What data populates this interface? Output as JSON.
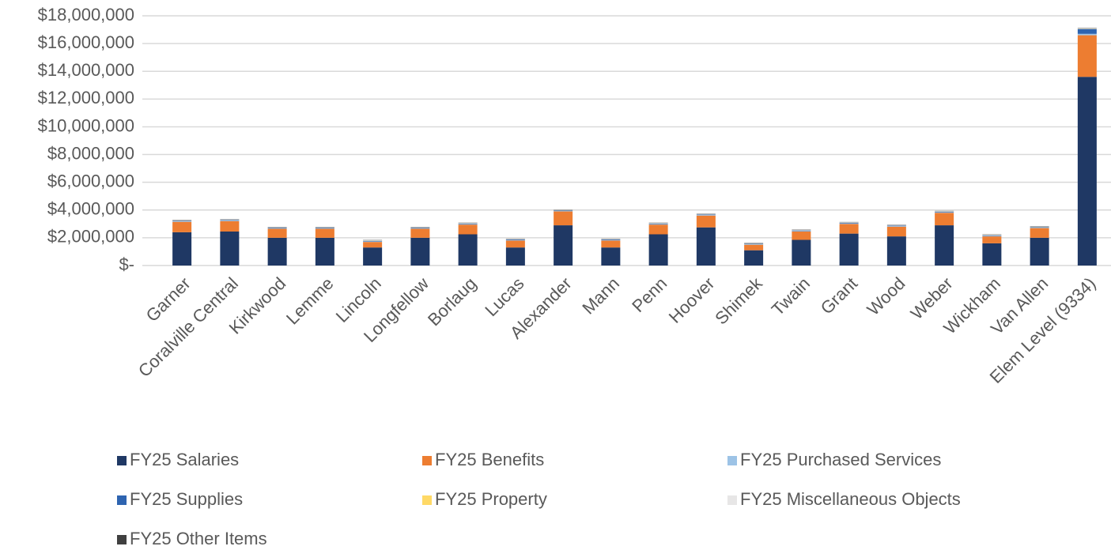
{
  "chart_data": {
    "type": "stacked_bar",
    "categories": [
      "Garner",
      "Coralville Central",
      "Kirkwood",
      "Lemme",
      "Lincoln",
      "Longfellow",
      "Borlaug",
      "Lucas",
      "Alexander",
      "Mann",
      "Penn",
      "Hoover",
      "Shimek",
      "Twain",
      "Grant",
      "Wood",
      "Weber",
      "Wickham",
      "Van Allen",
      "Elem Level (9334)"
    ],
    "series": [
      {
        "name": "FY25 Salaries",
        "color": "#1f3864",
        "values": [
          2400000,
          2450000,
          2000000,
          2000000,
          1300000,
          2000000,
          2250000,
          1300000,
          2900000,
          1300000,
          2250000,
          2750000,
          1100000,
          1850000,
          2300000,
          2100000,
          2900000,
          1600000,
          2000000,
          13600000
        ]
      },
      {
        "name": "FY25 Benefits",
        "color": "#ed7d31",
        "values": [
          750000,
          750000,
          650000,
          650000,
          400000,
          650000,
          700000,
          500000,
          1000000,
          500000,
          700000,
          850000,
          400000,
          600000,
          700000,
          700000,
          900000,
          500000,
          700000,
          3000000
        ]
      },
      {
        "name": "FY25 Purchased Services",
        "color": "#9dc3e6",
        "values": [
          40000,
          40000,
          40000,
          40000,
          40000,
          40000,
          40000,
          40000,
          40000,
          40000,
          40000,
          40000,
          40000,
          40000,
          40000,
          40000,
          40000,
          40000,
          40000,
          100000
        ]
      },
      {
        "name": "FY25 Supplies",
        "color": "#2e64b0",
        "values": [
          40000,
          40000,
          40000,
          40000,
          40000,
          40000,
          40000,
          40000,
          40000,
          40000,
          40000,
          40000,
          40000,
          40000,
          40000,
          40000,
          40000,
          40000,
          40000,
          350000
        ]
      },
      {
        "name": "FY25 Property",
        "color": "#ffd966",
        "values": [
          10000,
          10000,
          10000,
          10000,
          10000,
          10000,
          10000,
          10000,
          10000,
          10000,
          10000,
          10000,
          10000,
          10000,
          10000,
          10000,
          10000,
          10000,
          10000,
          20000
        ]
      },
      {
        "name": "FY25 Miscellaneous Objects",
        "color": "#e7e6e6",
        "values": [
          30000,
          30000,
          30000,
          30000,
          30000,
          30000,
          30000,
          30000,
          30000,
          30000,
          30000,
          30000,
          30000,
          30000,
          30000,
          30000,
          30000,
          30000,
          30000,
          50000
        ]
      },
      {
        "name": "FY25 Other Items",
        "color": "#404040",
        "values": [
          20000,
          20000,
          20000,
          20000,
          20000,
          20000,
          20000,
          20000,
          20000,
          20000,
          20000,
          20000,
          20000,
          20000,
          20000,
          20000,
          20000,
          20000,
          20000,
          20000
        ]
      }
    ],
    "ylim": [
      0,
      18000000
    ],
    "yticks": [
      {
        "value": 0,
        "label": "$-"
      },
      {
        "value": 2000000,
        "label": "$2,000,000"
      },
      {
        "value": 4000000,
        "label": "$4,000,000"
      },
      {
        "value": 6000000,
        "label": "$6,000,000"
      },
      {
        "value": 8000000,
        "label": "$8,000,000"
      },
      {
        "value": 10000000,
        "label": "$10,000,000"
      },
      {
        "value": 12000000,
        "label": "$12,000,000"
      },
      {
        "value": 14000000,
        "label": "$14,000,000"
      },
      {
        "value": 16000000,
        "label": "$16,000,000"
      },
      {
        "value": 18000000,
        "label": "$18,000,000"
      }
    ],
    "grid": true,
    "legend": "bottom"
  }
}
